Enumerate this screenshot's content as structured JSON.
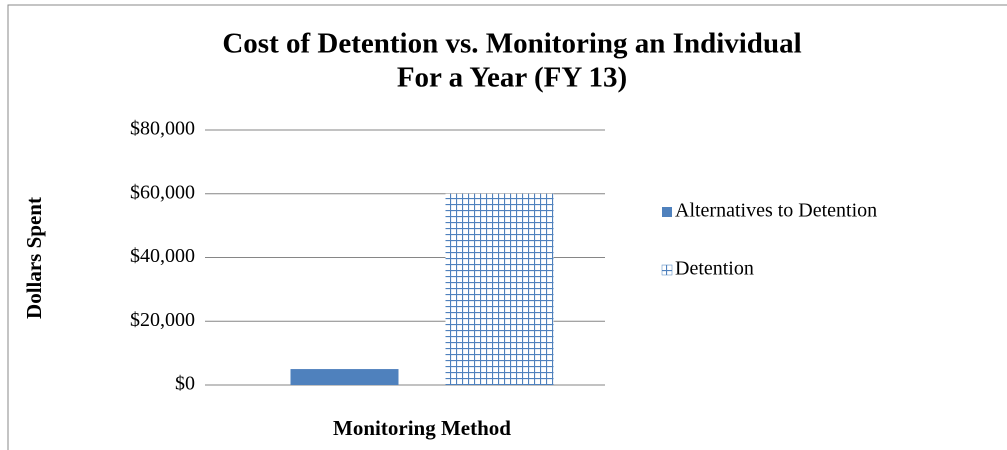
{
  "chart_data": {
    "type": "bar",
    "title": [
      "Cost of Detention vs. Monitoring an Individual",
      "For a Year (FY 13)"
    ],
    "xlabel": "Monitoring Method",
    "ylabel": "Dollars Spent",
    "categories": [
      null
    ],
    "series": [
      {
        "name": "Alternatives to Detention",
        "color": "#4f81bd",
        "pattern": "solid",
        "values": [
          5000
        ]
      },
      {
        "name": "Detention",
        "color": "#4f81bd",
        "pattern": "grid",
        "values": [
          60000
        ]
      }
    ],
    "ylim": [
      0,
      80000
    ],
    "yticks": [
      {
        "value": 0,
        "label": "$0"
      },
      {
        "value": 20000,
        "label": "$20,000"
      },
      {
        "value": 40000,
        "label": "$40,000"
      },
      {
        "value": 60000,
        "label": "$60,000"
      },
      {
        "value": 80000,
        "label": "$80,000"
      }
    ],
    "grid": true,
    "legend": "right"
  }
}
